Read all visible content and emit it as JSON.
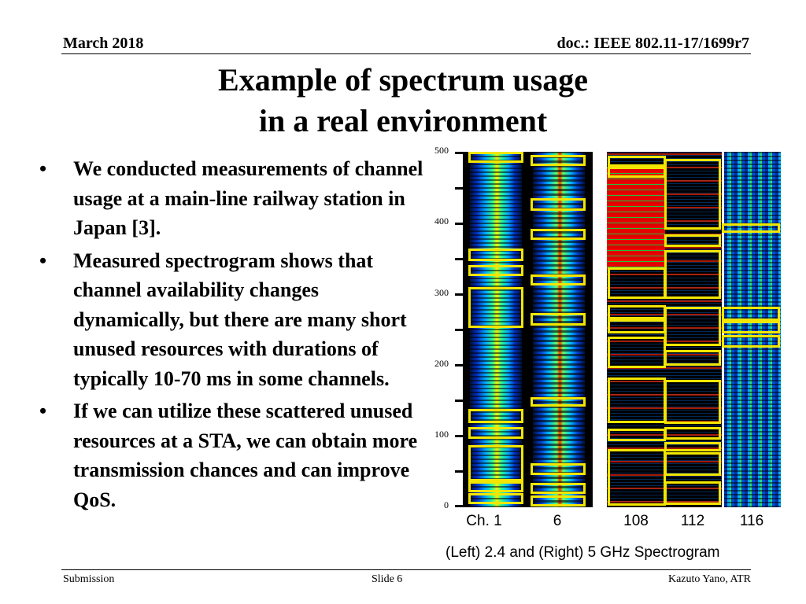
{
  "header": {
    "date": "March 2018",
    "doc": "doc.: IEEE 802.11-17/1699r7"
  },
  "title": {
    "line1": "Example of spectrum usage",
    "line2": "in a real environment"
  },
  "bullets": [
    "We conducted measurements of channel usage at a main-line railway station in Japan [3].",
    "Measured spectrogram shows that channel availability changes dynamically, but there are many short unused resources with durations of typically 10-70 ms in some channels.",
    "If we can utilize these scattered unused resources at a STA, we can obtain more transmission chances and can improve QoS."
  ],
  "bullet_symbol": "•",
  "figure": {
    "y_ticks": [
      "500",
      "400",
      "300",
      "200",
      "100",
      "0"
    ],
    "channels": [
      "Ch. 1",
      "6",
      "108",
      "112",
      "116"
    ],
    "caption": "(Left) 2.4 and (Right) 5 GHz Spectrogram",
    "highlight_color": "#f2e600"
  },
  "footer": {
    "left": "Submission",
    "center": "Slide 6",
    "right": "Kazuto Yano, ATR"
  }
}
